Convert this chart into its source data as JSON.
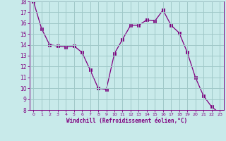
{
  "x": [
    0,
    1,
    2,
    3,
    4,
    5,
    6,
    7,
    8,
    9,
    10,
    11,
    12,
    13,
    14,
    15,
    16,
    17,
    18,
    19,
    20,
    21,
    22,
    23
  ],
  "y": [
    18.0,
    15.5,
    14.0,
    13.9,
    13.8,
    13.9,
    13.3,
    11.7,
    10.0,
    9.9,
    13.2,
    14.5,
    15.8,
    15.8,
    16.3,
    16.2,
    17.2,
    15.8,
    15.1,
    13.3,
    11.0,
    9.3,
    8.3,
    7.7
  ],
  "line_color": "#800080",
  "marker": "s",
  "marker_size": 2.5,
  "bg_color": "#c8eaea",
  "grid_color": "#a0c8c8",
  "xlabel": "Windchill (Refroidissement éolien,°C)",
  "xlabel_color": "#800080",
  "tick_color": "#800080",
  "xlim": [
    -0.5,
    23.5
  ],
  "ylim": [
    8,
    18
  ],
  "yticks": [
    8,
    9,
    10,
    11,
    12,
    13,
    14,
    15,
    16,
    17,
    18
  ],
  "xticks": [
    0,
    1,
    2,
    3,
    4,
    5,
    6,
    7,
    8,
    9,
    10,
    11,
    12,
    13,
    14,
    15,
    16,
    17,
    18,
    19,
    20,
    21,
    22,
    23
  ]
}
